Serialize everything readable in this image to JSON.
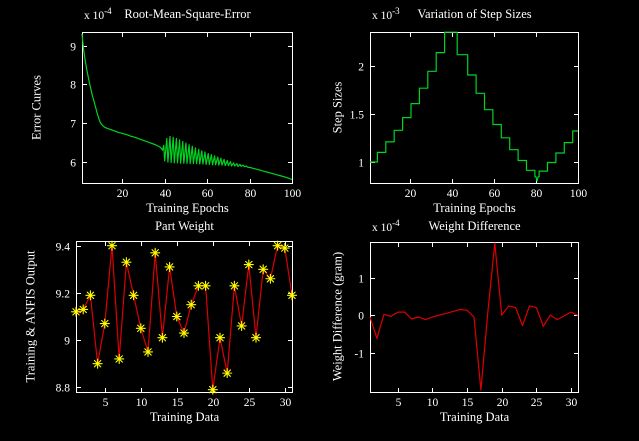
{
  "figure": {
    "background": "#000000",
    "text_color": "#ffffff",
    "axis_color": "#ffffff"
  },
  "chart_data": [
    {
      "id": "rmse",
      "type": "line",
      "title": "Root-Mean-Square-Error",
      "xlabel": "Training Epochs",
      "ylabel": "Error Curves",
      "scale_label": "x 10",
      "scale_exponent": "-4",
      "line_color": "#00d422",
      "xlim": [
        1,
        100
      ],
      "ylim": [
        5.45,
        9.35
      ],
      "xticks": [
        20,
        40,
        60,
        80,
        100
      ],
      "yticks": [
        6,
        7,
        8,
        9
      ],
      "ytick_labels": [
        "6",
        "7",
        "8",
        "9"
      ],
      "legend": null,
      "grid": false,
      "points": [
        [
          1,
          9.3
        ],
        [
          1.5,
          9.02
        ],
        [
          2,
          8.8
        ],
        [
          2.5,
          8.62
        ],
        [
          3,
          8.46
        ],
        [
          3.5,
          8.31
        ],
        [
          4,
          8.17
        ],
        [
          4.5,
          8.04
        ],
        [
          5,
          7.92
        ],
        [
          5.5,
          7.8
        ],
        [
          6,
          7.69
        ],
        [
          6.5,
          7.59
        ],
        [
          7,
          7.49
        ],
        [
          7.5,
          7.39
        ],
        [
          8,
          7.29
        ],
        [
          8.5,
          7.19
        ],
        [
          9,
          7.1
        ],
        [
          9.5,
          7.03
        ],
        [
          10,
          6.98
        ],
        [
          11,
          6.92
        ],
        [
          12,
          6.88
        ],
        [
          13,
          6.86
        ],
        [
          14,
          6.84
        ],
        [
          16,
          6.8
        ],
        [
          18,
          6.76
        ],
        [
          20,
          6.73
        ],
        [
          22,
          6.7
        ],
        [
          24,
          6.66
        ],
        [
          26,
          6.63
        ],
        [
          28,
          6.59
        ],
        [
          30,
          6.55
        ],
        [
          32,
          6.51
        ],
        [
          34,
          6.47
        ],
        [
          36,
          6.43
        ],
        [
          38,
          6.37
        ],
        [
          39,
          6.3
        ],
        [
          39.5,
          6.42
        ],
        [
          40,
          6.02
        ],
        [
          41,
          6.6
        ],
        [
          41.5,
          5.99
        ],
        [
          42.5,
          6.65
        ],
        [
          43,
          5.98
        ],
        [
          44,
          6.63
        ],
        [
          44.5,
          5.97
        ],
        [
          45.5,
          6.6
        ],
        [
          46,
          5.97
        ],
        [
          47,
          6.56
        ],
        [
          47.5,
          5.96
        ],
        [
          48.5,
          6.52
        ],
        [
          49,
          5.96
        ],
        [
          50,
          6.48
        ],
        [
          50.5,
          5.96
        ],
        [
          51.5,
          6.44
        ],
        [
          52,
          5.95
        ],
        [
          53,
          6.4
        ],
        [
          53.5,
          5.95
        ],
        [
          54.5,
          6.36
        ],
        [
          55,
          5.95
        ],
        [
          56,
          6.32
        ],
        [
          56.5,
          5.94
        ],
        [
          57.5,
          6.28
        ],
        [
          58,
          5.94
        ],
        [
          59,
          6.25
        ],
        [
          59.5,
          5.93
        ],
        [
          60.5,
          6.21
        ],
        [
          61,
          5.93
        ],
        [
          62,
          6.18
        ],
        [
          62.5,
          5.92
        ],
        [
          63.5,
          6.15
        ],
        [
          64,
          5.92
        ],
        [
          65,
          6.12
        ],
        [
          65.5,
          5.91
        ],
        [
          66.5,
          6.09
        ],
        [
          67,
          5.91
        ],
        [
          68,
          6.06
        ],
        [
          68.5,
          5.9
        ],
        [
          69.5,
          6.03
        ],
        [
          70,
          5.9
        ],
        [
          71,
          6.0
        ],
        [
          71.5,
          5.89
        ],
        [
          72.5,
          5.97
        ],
        [
          73,
          5.89
        ],
        [
          74,
          5.95
        ],
        [
          74.5,
          5.88
        ],
        [
          75.5,
          5.93
        ],
        [
          76,
          5.88
        ],
        [
          77,
          5.91
        ],
        [
          77.5,
          5.87
        ],
        [
          78.5,
          5.89
        ],
        [
          79,
          5.86
        ],
        [
          80,
          5.85
        ],
        [
          81,
          5.84
        ],
        [
          83,
          5.81
        ],
        [
          85,
          5.78
        ],
        [
          87,
          5.75
        ],
        [
          89,
          5.72
        ],
        [
          91,
          5.69
        ],
        [
          93,
          5.66
        ],
        [
          95,
          5.63
        ],
        [
          97,
          5.6
        ],
        [
          99,
          5.56
        ],
        [
          100,
          5.54
        ]
      ]
    },
    {
      "id": "step-sizes",
      "type": "line",
      "title": "Variation of Step Sizes",
      "xlabel": "Training Epochs",
      "ylabel": "Step Sizes",
      "scale_label": "x 10",
      "scale_exponent": "-3",
      "line_color": "#00d422",
      "xlim": [
        1,
        100
      ],
      "ylim": [
        0.78,
        2.36
      ],
      "xticks": [
        20,
        40,
        60,
        80,
        100
      ],
      "yticks": [
        1,
        1.5,
        2
      ],
      "ytick_labels": [
        "1",
        "1.5",
        "2"
      ],
      "legend": null,
      "grid": false,
      "points": [
        [
          1,
          1.0
        ],
        [
          4.5,
          1.0
        ],
        [
          4.5,
          1.1
        ],
        [
          8.5,
          1.1
        ],
        [
          8.5,
          1.21
        ],
        [
          12.5,
          1.21
        ],
        [
          12.5,
          1.331
        ],
        [
          16.5,
          1.331
        ],
        [
          16.5,
          1.464
        ],
        [
          20.5,
          1.464
        ],
        [
          20.5,
          1.611
        ],
        [
          24.5,
          1.611
        ],
        [
          24.5,
          1.772
        ],
        [
          28.5,
          1.772
        ],
        [
          28.5,
          1.949
        ],
        [
          32.5,
          1.949
        ],
        [
          32.5,
          2.144
        ],
        [
          36.5,
          2.144
        ],
        [
          36.5,
          2.358
        ],
        [
          42.5,
          2.358
        ],
        [
          42.5,
          2.122
        ],
        [
          47.5,
          2.122
        ],
        [
          47.5,
          1.91
        ],
        [
          51.5,
          1.91
        ],
        [
          51.5,
          1.719
        ],
        [
          55.5,
          1.719
        ],
        [
          55.5,
          1.547
        ],
        [
          59.5,
          1.547
        ],
        [
          59.5,
          1.392
        ],
        [
          63.5,
          1.392
        ],
        [
          63.5,
          1.253
        ],
        [
          67.5,
          1.253
        ],
        [
          67.5,
          1.128
        ],
        [
          71.5,
          1.128
        ],
        [
          71.5,
          1.015
        ],
        [
          75.5,
          1.015
        ],
        [
          75.5,
          0.913
        ],
        [
          79.5,
          0.913
        ],
        [
          79.5,
          0.845
        ],
        [
          80,
          0.845
        ],
        [
          80.5,
          0.8
        ],
        [
          81,
          0.845
        ],
        [
          81.5,
          0.845
        ],
        [
          81.5,
          0.904
        ],
        [
          85.5,
          0.904
        ],
        [
          85.5,
          0.995
        ],
        [
          89.5,
          0.995
        ],
        [
          89.5,
          1.094
        ],
        [
          93.5,
          1.094
        ],
        [
          93.5,
          1.203
        ],
        [
          97.5,
          1.203
        ],
        [
          97.5,
          1.324
        ],
        [
          100,
          1.324
        ]
      ]
    },
    {
      "id": "part-weight",
      "type": "line-marker",
      "title": "Part Weight",
      "xlabel": "Training Data",
      "ylabel": "Training & ANFIS Output",
      "line_color": "#dd0000",
      "marker": "asterisk",
      "marker_color": "#ffff00",
      "xlim": [
        1,
        31
      ],
      "ylim": [
        8.78,
        9.42
      ],
      "xticks": [
        5,
        10,
        15,
        20,
        25,
        30
      ],
      "yticks": [
        8.8,
        9,
        9.2,
        9.4
      ],
      "ytick_labels": [
        "8.8",
        "9",
        "9.2",
        "9.4"
      ],
      "legend": null,
      "grid": false,
      "points": [
        [
          1,
          9.12
        ],
        [
          2,
          9.13
        ],
        [
          3,
          9.19
        ],
        [
          4,
          8.9
        ],
        [
          5,
          9.07
        ],
        [
          6,
          9.4
        ],
        [
          7,
          8.92
        ],
        [
          8,
          9.33
        ],
        [
          9,
          9.19
        ],
        [
          10,
          9.05
        ],
        [
          11,
          8.95
        ],
        [
          12,
          9.37
        ],
        [
          13,
          9.01
        ],
        [
          14,
          9.31
        ],
        [
          15,
          9.1
        ],
        [
          16,
          9.03
        ],
        [
          17,
          9.15
        ],
        [
          18,
          9.23
        ],
        [
          19,
          9.23
        ],
        [
          20,
          8.79
        ],
        [
          21,
          9.01
        ],
        [
          22,
          8.86
        ],
        [
          23,
          9.23
        ],
        [
          24,
          9.06
        ],
        [
          25,
          9.32
        ],
        [
          26,
          9.01
        ],
        [
          27,
          9.3
        ],
        [
          28,
          9.26
        ],
        [
          29,
          9.4
        ],
        [
          30,
          9.39
        ],
        [
          31,
          9.19
        ]
      ]
    },
    {
      "id": "weight-difference",
      "type": "line",
      "title": "Weight Difference",
      "xlabel": "Training Data",
      "ylabel": "Weight Difference (gram)",
      "scale_label": "x 10",
      "scale_exponent": "-4",
      "line_color": "#dd0000",
      "xlim": [
        1,
        31
      ],
      "ylim": [
        -2.05,
        1.95
      ],
      "xticks": [
        5,
        10,
        15,
        20,
        25,
        30
      ],
      "yticks": [
        -1,
        0,
        1
      ],
      "ytick_labels": [
        "-1",
        "0",
        "1"
      ],
      "legend": null,
      "grid": false,
      "points": [
        [
          1,
          -0.05
        ],
        [
          2,
          -0.62
        ],
        [
          3,
          0.02
        ],
        [
          4,
          -0.03
        ],
        [
          5,
          0.08
        ],
        [
          6,
          0.08
        ],
        [
          7,
          -0.1
        ],
        [
          8,
          -0.05
        ],
        [
          9,
          -0.12
        ],
        [
          10,
          -0.05
        ],
        [
          11,
          0.0
        ],
        [
          12,
          0.05
        ],
        [
          13,
          0.1
        ],
        [
          14,
          0.15
        ],
        [
          15,
          0.13
        ],
        [
          16,
          -0.05
        ],
        [
          17,
          -2.0
        ],
        [
          18,
          0.1
        ],
        [
          19,
          1.92
        ],
        [
          20,
          0.0
        ],
        [
          21,
          0.25
        ],
        [
          22,
          0.2
        ],
        [
          23,
          -0.28
        ],
        [
          24,
          0.25
        ],
        [
          25,
          0.2
        ],
        [
          26,
          -0.3
        ],
        [
          27,
          0.0
        ],
        [
          28,
          -0.12
        ],
        [
          29,
          -0.02
        ],
        [
          30,
          0.08
        ],
        [
          31,
          -0.01
        ]
      ]
    }
  ]
}
